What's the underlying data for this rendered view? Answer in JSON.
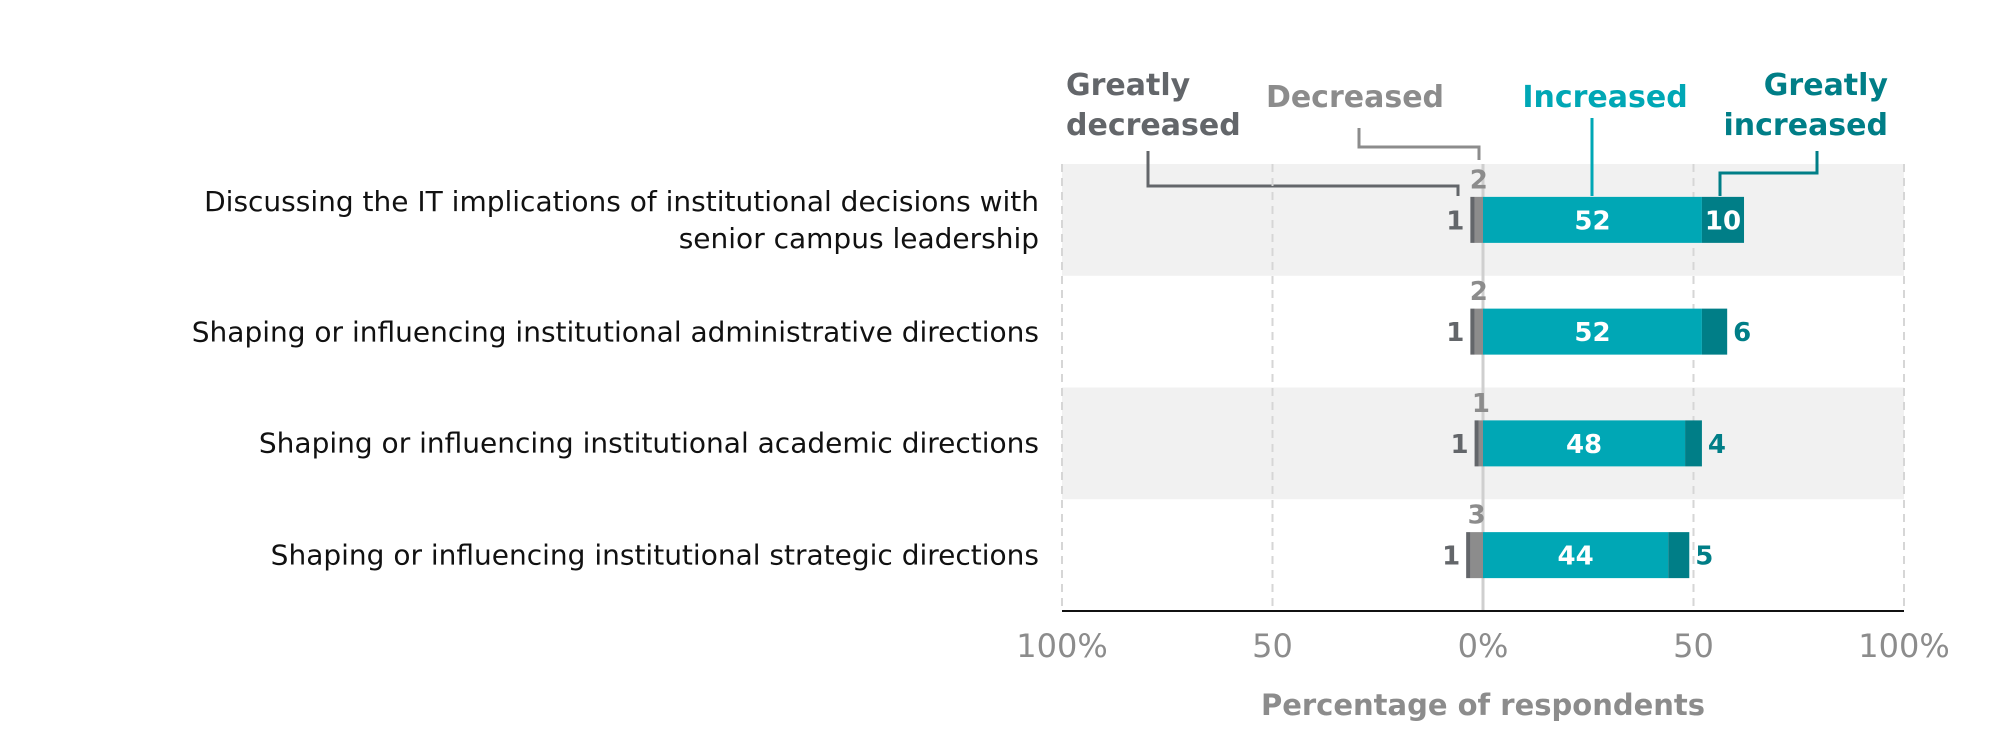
{
  "chart_data": {
    "type": "diverging-bar",
    "categories": [
      "Discussing the IT implications of institutional decisions with senior campus leadership",
      "Shaping or influencing institutional administrative directions",
      "Shaping or influencing institutional academic directions",
      "Shaping or influencing institutional strategic directions"
    ],
    "series": [
      {
        "name": "Greatly decreased",
        "color": "#63666a",
        "side": "left",
        "values": [
          1,
          1,
          1,
          1
        ]
      },
      {
        "name": "Decreased",
        "color": "#8c8c8c",
        "side": "left",
        "values": [
          2,
          2,
          1,
          3
        ]
      },
      {
        "name": "Increased",
        "color": "#00a7b5",
        "side": "right",
        "values": [
          52,
          52,
          48,
          44
        ]
      },
      {
        "name": "Greatly increased",
        "color": "#007e87",
        "side": "right",
        "values": [
          10,
          6,
          4,
          5
        ]
      }
    ],
    "xlim": [
      -100,
      100
    ],
    "xticks": [
      {
        "value": -100,
        "label": "100%"
      },
      {
        "value": -50,
        "label": "50"
      },
      {
        "value": 0,
        "label": "0%"
      },
      {
        "value": 50,
        "label": "50"
      },
      {
        "value": 100,
        "label": "100%"
      }
    ],
    "xlabel": "Percentage of respondents",
    "grid": true
  }
}
